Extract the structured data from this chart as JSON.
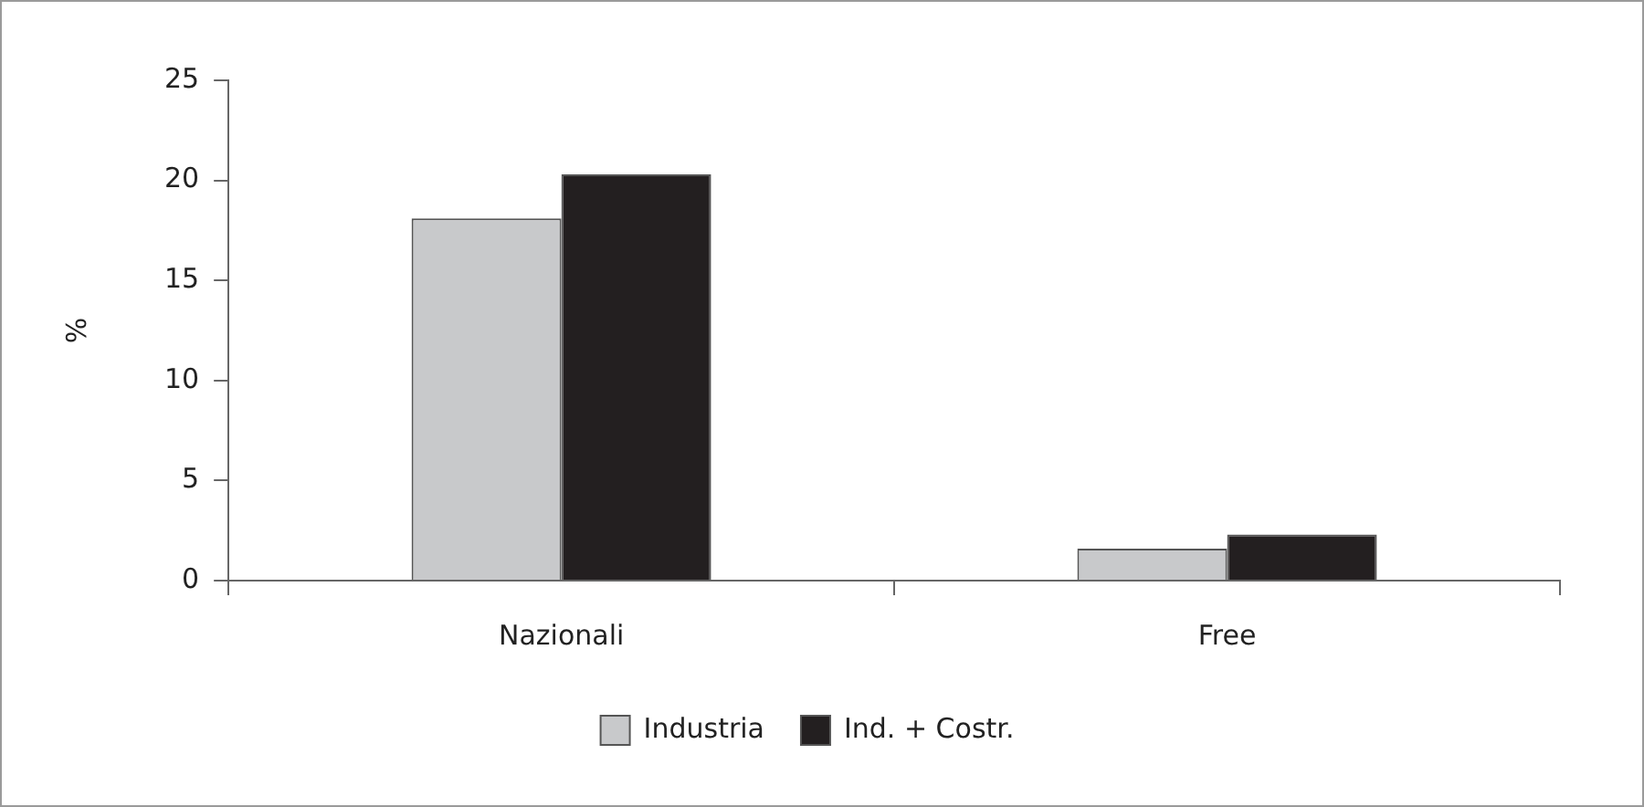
{
  "chart_data": {
    "type": "bar",
    "categories": [
      "Nazionali",
      "Free"
    ],
    "ylabel": "%",
    "ylim": [
      0,
      25
    ],
    "yticks": [
      0,
      5,
      10,
      15,
      20,
      25
    ],
    "grid": false,
    "legend": "bottom",
    "series": [
      {
        "name": "Industria",
        "color": "#c8c9cb",
        "values": [
          18.1,
          1.6
        ]
      },
      {
        "name": "Ind. + Costr.",
        "color": "#231f20",
        "values": [
          20.3,
          2.3
        ]
      }
    ]
  }
}
